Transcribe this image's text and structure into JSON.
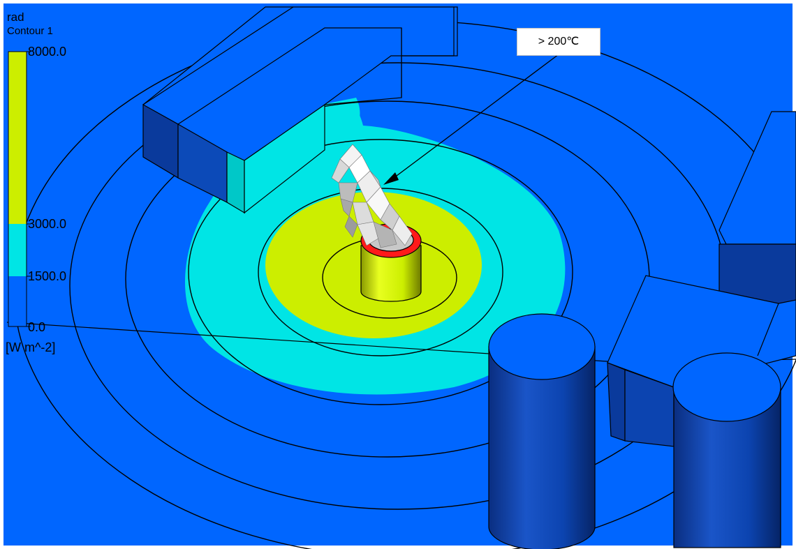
{
  "legend": {
    "variable": "rad",
    "contour_name": "Contour 1",
    "unit": "[W m^-2]",
    "levels": [
      {
        "label": "8000.0",
        "value": 8000
      },
      {
        "label": "3000.0",
        "value": 3000
      },
      {
        "label": "1500.0",
        "value": 1500
      },
      {
        "label": "0.0",
        "value": 0
      }
    ],
    "bands": [
      {
        "from": 3000,
        "to": 8000,
        "color": "#ccee00"
      },
      {
        "from": 1500,
        "to": 3000,
        "color": "#00e5e5"
      },
      {
        "from": 0,
        "to": 1500,
        "color": "#0066ff"
      }
    ]
  },
  "annotation": {
    "text": "> 200℃"
  },
  "colors": {
    "background": "#0066ff",
    "band_high": "#ccee00",
    "band_mid": "#00e5e5",
    "band_low": "#0066ff",
    "pan_rim": "#ff1a1a",
    "flame": "#e0e0e0"
  }
}
